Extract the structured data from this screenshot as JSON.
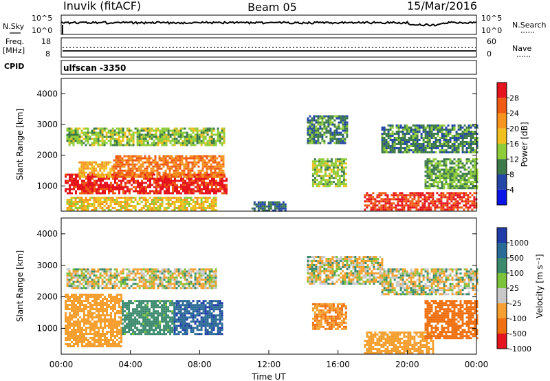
{
  "header": {
    "station": "Inuvik (fitACF)",
    "beam": "Beam 05",
    "date": "15/Mar/2016"
  },
  "noise_panel": {
    "left_label": "N.Sky",
    "right_label": "N.Search",
    "left_ticks": [
      "10^5",
      "10^0"
    ],
    "right_ticks": [
      "10^5",
      "10^0"
    ]
  },
  "freq_panel": {
    "left_label_1": "Freq.",
    "left_label_2": "[MHz]",
    "right_label": "Nave",
    "left_ticks": [
      "18",
      "8"
    ],
    "right_ticks": [
      "60",
      "0"
    ]
  },
  "cpid": {
    "label": "CPID",
    "program": "ulfscan -3350"
  },
  "colors": {
    "power": [
      "#0a14e6",
      "#2346a6",
      "#3d7a4a",
      "#8fcc3a",
      "#f0c020",
      "#f79420",
      "#ef5a14",
      "#e6141e"
    ],
    "velocity": [
      "#1f3ca8",
      "#2a6a96",
      "#3b8a6e",
      "#7cc23a",
      "#c8c8c8",
      "#f5a030",
      "#f07010",
      "#e6141e"
    ]
  },
  "chart_data": [
    {
      "type": "heatmap",
      "title": "",
      "quantity": "Power",
      "xlabel": "",
      "ylabel": "Slant Range [km]",
      "yticks": [
        "1000",
        "2000",
        "3000",
        "4000"
      ],
      "colorbar_label": "Power [dB]",
      "colorbar_ticks": [
        "4",
        "8",
        "12",
        "16",
        "20",
        "24",
        "28"
      ],
      "colorbar_range": [
        0,
        32
      ],
      "x_range": [
        "00:00",
        "24:00"
      ],
      "y_range": [
        180,
        4500
      ],
      "features": [
        {
          "t0": 0.2,
          "t1": 9.5,
          "r0": 750,
          "r1": 1400,
          "level": 30
        },
        {
          "t0": 1.0,
          "t1": 3.0,
          "r0": 1300,
          "r1": 1800,
          "level": 20
        },
        {
          "t0": 3.0,
          "t1": 9.4,
          "r0": 1300,
          "r1": 2000,
          "level": 24
        },
        {
          "t0": 0.3,
          "t1": 9.4,
          "r0": 2300,
          "r1": 2900,
          "level": 14
        },
        {
          "t0": 0.3,
          "t1": 9.0,
          "r0": 200,
          "r1": 650,
          "level": 18
        },
        {
          "t0": 11.0,
          "t1": 13.0,
          "r0": 200,
          "r1": 500,
          "level": 8
        },
        {
          "t0": 14.2,
          "t1": 16.5,
          "r0": 2400,
          "r1": 3300,
          "level": 10
        },
        {
          "t0": 14.5,
          "t1": 16.5,
          "r0": 1000,
          "r1": 1900,
          "level": 14
        },
        {
          "t0": 17.5,
          "t1": 24.0,
          "r0": 200,
          "r1": 800,
          "level": 28
        },
        {
          "t0": 21.0,
          "t1": 24.0,
          "r0": 900,
          "r1": 1900,
          "level": 12
        },
        {
          "t0": 18.5,
          "t1": 24.0,
          "r0": 2100,
          "r1": 3000,
          "level": 10
        }
      ]
    },
    {
      "type": "heatmap",
      "title": "",
      "quantity": "Velocity",
      "xlabel": "Time UT",
      "ylabel": "Slant Range [km]",
      "yticks": [
        "1000",
        "2000",
        "3000",
        "4000"
      ],
      "xticks": [
        "00:00",
        "04:00",
        "08:00",
        "12:00",
        "16:00",
        "20:00",
        "00:00"
      ],
      "colorbar_label": "Velocity [m s⁻¹]",
      "colorbar_ticks": [
        "1000",
        "500",
        "100",
        "25",
        "-25",
        "-100",
        "-500",
        "-1000"
      ],
      "x_range": [
        "00:00",
        "24:00"
      ],
      "y_range": [
        180,
        4500
      ],
      "features": [
        {
          "t0": 0.2,
          "t1": 3.5,
          "r0": 400,
          "r1": 2100,
          "level": -200
        },
        {
          "t0": 3.5,
          "t1": 6.5,
          "r0": 800,
          "r1": 1900,
          "level": 150
        },
        {
          "t0": 6.5,
          "t1": 9.3,
          "r0": 800,
          "r1": 1900,
          "level": 700
        },
        {
          "t0": 0.3,
          "t1": 9.0,
          "r0": 2300,
          "r1": 2900,
          "level": 0
        },
        {
          "t0": 14.2,
          "t1": 18.5,
          "r0": 2400,
          "r1": 3300,
          "level": 0
        },
        {
          "t0": 14.5,
          "t1": 16.5,
          "r0": 1000,
          "r1": 1800,
          "level": -300
        },
        {
          "t0": 17.5,
          "t1": 21.5,
          "r0": 200,
          "r1": 900,
          "level": -200
        },
        {
          "t0": 21.0,
          "t1": 24.0,
          "r0": 700,
          "r1": 1900,
          "level": -400
        },
        {
          "t0": 18.5,
          "t1": 24.0,
          "r0": 2100,
          "r1": 2900,
          "level": 0
        }
      ]
    }
  ]
}
